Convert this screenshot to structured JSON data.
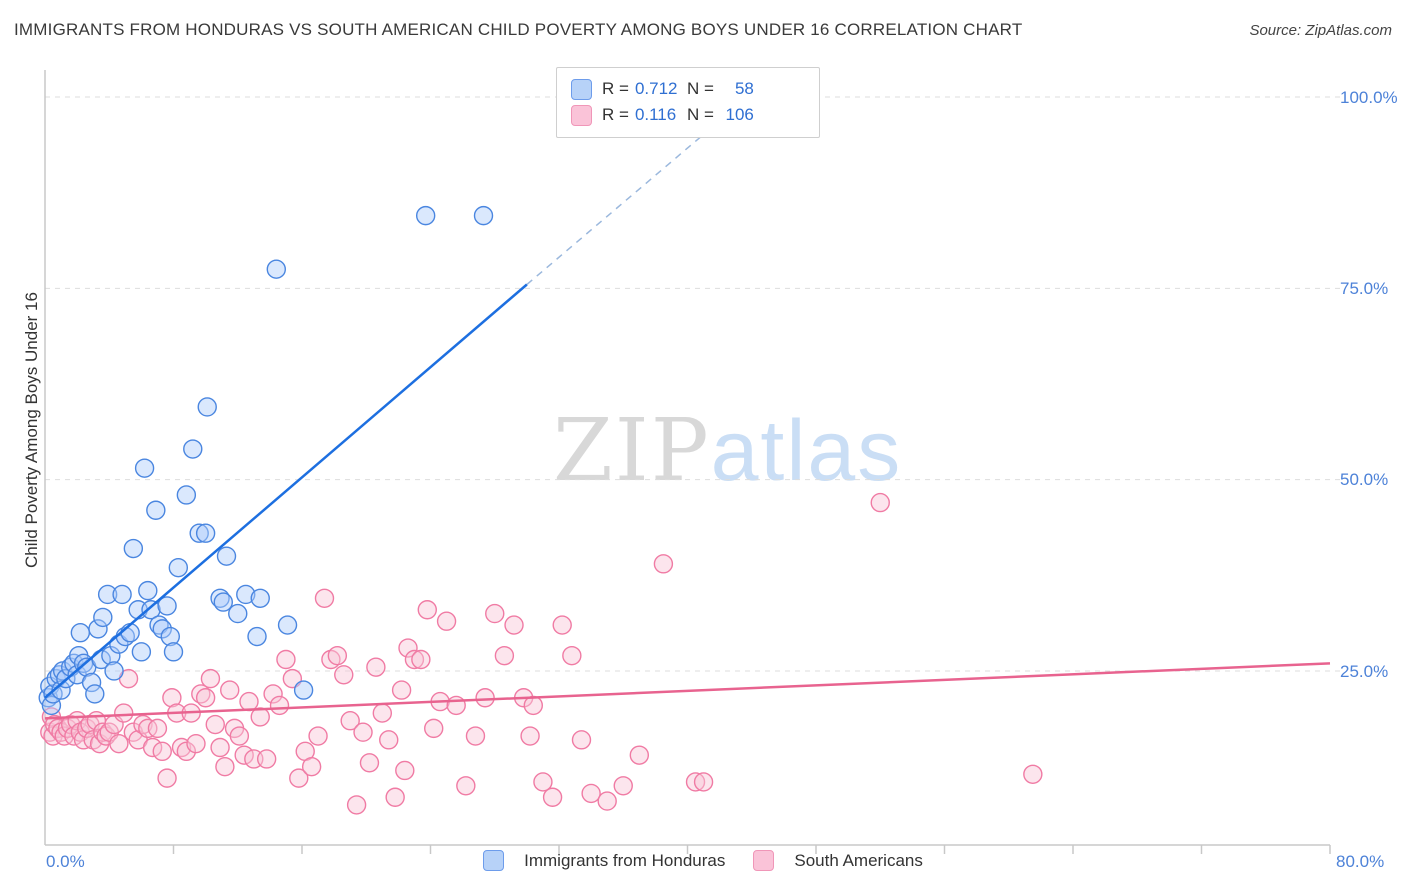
{
  "header": {
    "title": "IMMIGRANTS FROM HONDURAS VS SOUTH AMERICAN CHILD POVERTY AMONG BOYS UNDER 16 CORRELATION CHART",
    "source": "Source: ZipAtlas.com"
  },
  "watermark": {
    "part1": "ZIP",
    "part2": "atlas"
  },
  "axes": {
    "y_title": "Child Poverty Among Boys Under 16",
    "y_tick_labels": [
      "100.0%",
      "75.0%",
      "50.0%",
      "25.0%"
    ],
    "x_min_label": "0.0%",
    "x_max_label": "80.0%"
  },
  "legend_box": {
    "r_label": "R =",
    "n_label": "N =",
    "series": [
      {
        "r_value": "0.712",
        "n_value": "58"
      },
      {
        "r_value": "0.116",
        "n_value": "106"
      }
    ]
  },
  "bottom_legend": {
    "series1": "Immigrants from Honduras",
    "series2": "South Americans"
  },
  "colors": {
    "blue_stroke": "#4a86e0",
    "blue_fill": "#aecbfa",
    "blue_line": "#1d6fe0",
    "pink_stroke": "#f07ba4",
    "pink_fill": "#f9c6d8",
    "pink_line": "#e8638f",
    "grid": "#dddddd",
    "axis": "#c8c8c8",
    "tick_label_blue": "#4d82d8"
  },
  "chart_data": {
    "type": "scatter",
    "title": "Immigrants from Honduras vs South American Child Poverty Among Boys Under 16",
    "xlabel": "Immigrants from Honduras (%)",
    "ylabel": "Child Poverty Among Boys Under 16 (%)",
    "xlim": [
      0,
      80
    ],
    "ylim": [
      0,
      100
    ],
    "grid": "horizontal-dashed",
    "legend_position": "top-center and bottom-center",
    "series": [
      {
        "name": "Immigrants from Honduras",
        "R": 0.712,
        "N": 58,
        "trend_line": {
          "x1": 0,
          "y1": 21.5,
          "x2": 30,
          "y2": 75.5,
          "dashed_extension_to": [
            41.5,
            96
          ]
        },
        "points": [
          [
            0.2,
            21.5
          ],
          [
            0.3,
            23
          ],
          [
            0.4,
            20.5
          ],
          [
            0.5,
            22
          ],
          [
            0.7,
            24
          ],
          [
            0.9,
            24.5
          ],
          [
            1.0,
            22.5
          ],
          [
            1.1,
            25
          ],
          [
            1.3,
            24
          ],
          [
            1.6,
            25.5
          ],
          [
            1.8,
            26
          ],
          [
            2.0,
            24.5
          ],
          [
            2.1,
            27
          ],
          [
            2.2,
            30
          ],
          [
            2.4,
            26
          ],
          [
            2.6,
            25.5
          ],
          [
            2.9,
            23.5
          ],
          [
            3.1,
            22
          ],
          [
            3.3,
            30.5
          ],
          [
            3.5,
            26.5
          ],
          [
            3.6,
            32
          ],
          [
            3.9,
            35
          ],
          [
            4.1,
            27
          ],
          [
            4.3,
            25
          ],
          [
            4.6,
            28.5
          ],
          [
            4.8,
            35
          ],
          [
            5.0,
            29.5
          ],
          [
            5.3,
            30
          ],
          [
            5.5,
            41
          ],
          [
            5.8,
            33
          ],
          [
            6.0,
            27.5
          ],
          [
            6.2,
            51.5
          ],
          [
            6.4,
            35.5
          ],
          [
            6.6,
            33
          ],
          [
            6.9,
            46
          ],
          [
            7.1,
            31
          ],
          [
            7.3,
            30.5
          ],
          [
            7.6,
            33.5
          ],
          [
            7.8,
            29.5
          ],
          [
            8.0,
            27.5
          ],
          [
            8.3,
            38.5
          ],
          [
            8.8,
            48
          ],
          [
            9.2,
            54
          ],
          [
            9.6,
            43
          ],
          [
            10.0,
            43
          ],
          [
            10.1,
            59.5
          ],
          [
            10.9,
            34.5
          ],
          [
            11.1,
            34
          ],
          [
            11.3,
            40
          ],
          [
            12.0,
            32.5
          ],
          [
            12.5,
            35
          ],
          [
            13.2,
            29.5
          ],
          [
            13.4,
            34.5
          ],
          [
            14.4,
            77.5
          ],
          [
            15.1,
            31
          ],
          [
            16.1,
            22.5
          ],
          [
            23.7,
            84.5
          ],
          [
            27.3,
            84.5
          ]
        ]
      },
      {
        "name": "South Americans",
        "R": 0.116,
        "N": 106,
        "trend_line": {
          "x1": 0,
          "y1": 18.8,
          "x2": 80,
          "y2": 26.0
        },
        "points": [
          [
            0.3,
            17
          ],
          [
            0.4,
            19
          ],
          [
            0.5,
            16.5
          ],
          [
            0.6,
            18
          ],
          [
            0.8,
            17.5
          ],
          [
            1.0,
            17
          ],
          [
            1.2,
            16.5
          ],
          [
            1.4,
            17.5
          ],
          [
            1.6,
            18
          ],
          [
            1.8,
            16.5
          ],
          [
            2.0,
            18.5
          ],
          [
            2.2,
            17
          ],
          [
            2.4,
            16
          ],
          [
            2.6,
            17.5
          ],
          [
            2.8,
            18
          ],
          [
            3.0,
            16
          ],
          [
            3.2,
            18.5
          ],
          [
            3.4,
            15.5
          ],
          [
            3.6,
            17
          ],
          [
            3.8,
            16.5
          ],
          [
            4.0,
            17
          ],
          [
            4.3,
            18
          ],
          [
            4.6,
            15.5
          ],
          [
            4.9,
            19.5
          ],
          [
            5.2,
            24
          ],
          [
            5.5,
            17
          ],
          [
            5.8,
            16
          ],
          [
            6.1,
            18
          ],
          [
            6.4,
            17.5
          ],
          [
            6.7,
            15
          ],
          [
            7.0,
            17.5
          ],
          [
            7.3,
            14.5
          ],
          [
            7.6,
            11
          ],
          [
            7.9,
            21.5
          ],
          [
            8.2,
            19.5
          ],
          [
            8.5,
            15
          ],
          [
            8.8,
            14.5
          ],
          [
            9.1,
            19.5
          ],
          [
            9.4,
            15.5
          ],
          [
            9.7,
            22
          ],
          [
            10.0,
            21.5
          ],
          [
            10.3,
            24
          ],
          [
            10.6,
            18
          ],
          [
            10.9,
            15
          ],
          [
            11.2,
            12.5
          ],
          [
            11.5,
            22.5
          ],
          [
            11.8,
            17.5
          ],
          [
            12.1,
            16.5
          ],
          [
            12.4,
            14
          ],
          [
            12.7,
            21
          ],
          [
            13.0,
            13.5
          ],
          [
            13.4,
            19
          ],
          [
            13.8,
            13.5
          ],
          [
            14.2,
            22
          ],
          [
            14.6,
            20.5
          ],
          [
            15.0,
            26.5
          ],
          [
            15.4,
            24
          ],
          [
            15.8,
            11
          ],
          [
            16.2,
            14.5
          ],
          [
            16.6,
            12.5
          ],
          [
            17.0,
            16.5
          ],
          [
            17.4,
            34.5
          ],
          [
            17.8,
            26.5
          ],
          [
            18.2,
            27
          ],
          [
            18.6,
            24.5
          ],
          [
            19.0,
            18.5
          ],
          [
            19.4,
            7.5
          ],
          [
            19.8,
            17
          ],
          [
            20.2,
            13
          ],
          [
            20.6,
            25.5
          ],
          [
            21.0,
            19.5
          ],
          [
            21.4,
            16
          ],
          [
            21.8,
            8.5
          ],
          [
            22.2,
            22.5
          ],
          [
            22.4,
            12
          ],
          [
            22.6,
            28
          ],
          [
            23.0,
            26.5
          ],
          [
            23.4,
            26.5
          ],
          [
            23.8,
            33
          ],
          [
            24.2,
            17.5
          ],
          [
            24.6,
            21
          ],
          [
            25.0,
            31.5
          ],
          [
            25.6,
            20.5
          ],
          [
            26.2,
            10
          ],
          [
            26.8,
            16.5
          ],
          [
            27.4,
            21.5
          ],
          [
            28.0,
            32.5
          ],
          [
            28.6,
            27
          ],
          [
            29.2,
            31
          ],
          [
            29.8,
            21.5
          ],
          [
            30.2,
            16.5
          ],
          [
            30.4,
            20.5
          ],
          [
            31.0,
            10.5
          ],
          [
            31.6,
            8.5
          ],
          [
            32.2,
            31
          ],
          [
            32.8,
            27
          ],
          [
            33.4,
            16
          ],
          [
            34.0,
            9
          ],
          [
            35.0,
            8
          ],
          [
            36.0,
            10
          ],
          [
            37.0,
            14
          ],
          [
            38.5,
            39
          ],
          [
            40.5,
            10.5
          ],
          [
            41.0,
            10.5
          ],
          [
            52.0,
            47
          ],
          [
            61.5,
            11.5
          ]
        ]
      }
    ]
  }
}
